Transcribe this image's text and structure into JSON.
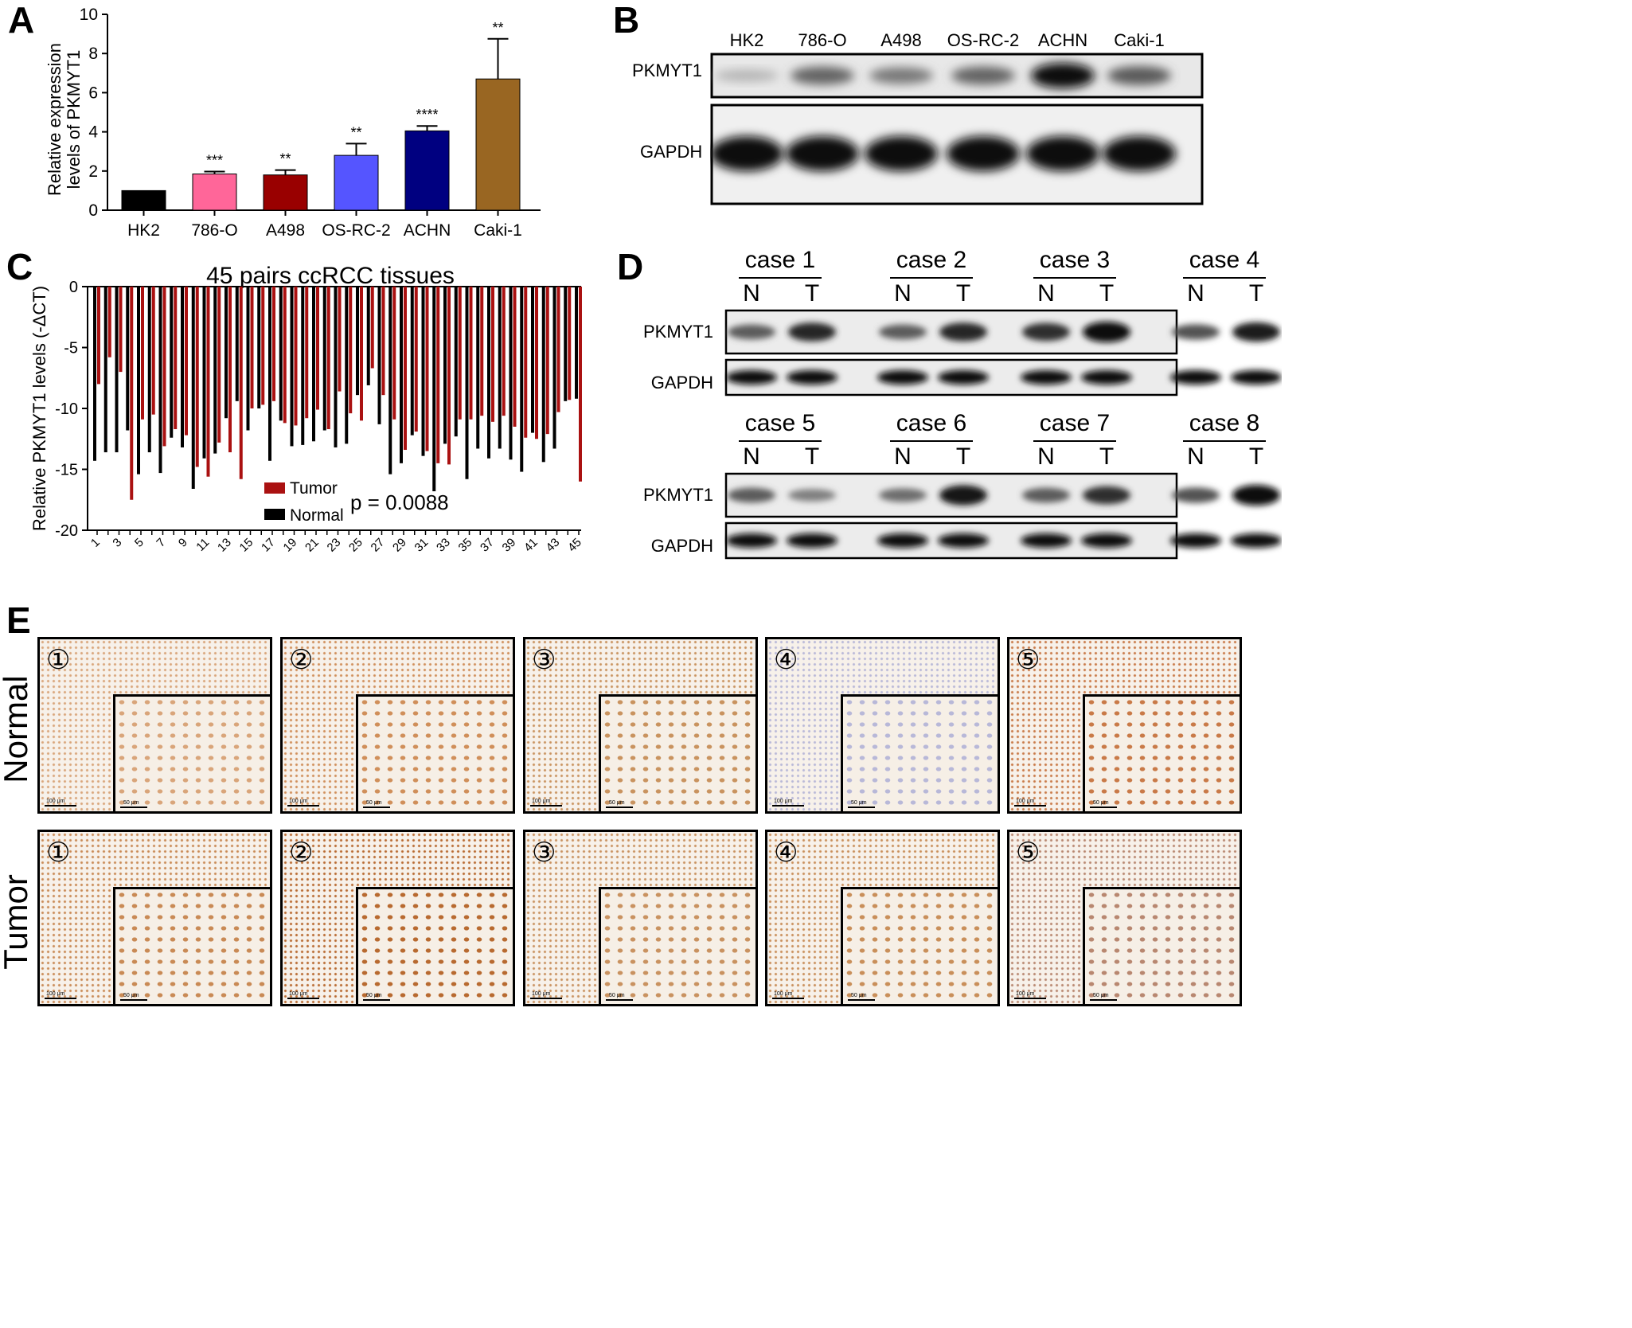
{
  "panels": {
    "A": "A",
    "B": "B",
    "C": "C",
    "D": "D",
    "E": "E"
  },
  "panel_a": {
    "ylabel_line1": "Relative expression",
    "ylabel_line2": "levels of PKMYT1"
  },
  "panel_b": {
    "lanes": [
      "HK2",
      "786-O",
      "A498",
      "OS-RC-2",
      "ACHN",
      "Caki-1"
    ],
    "rows": [
      "PKMYT1",
      "GAPDH"
    ],
    "pkmyt1_intensity": [
      0.15,
      0.55,
      0.45,
      0.55,
      1.0,
      0.6
    ]
  },
  "panel_c": {
    "legend_tumor": "Tumor",
    "legend_normal": "Normal",
    "pvalue": "p = 0.0088"
  },
  "panel_d": {
    "cases": [
      "case 1",
      "case 2",
      "case 3",
      "case 4",
      "case 5",
      "case 6",
      "case 7",
      "case 8"
    ],
    "n_label": "N",
    "t_label": "T",
    "rows": [
      "PKMYT1",
      "GAPDH"
    ]
  },
  "panel_e": {
    "row_labels": [
      "Normal",
      "Tumor"
    ],
    "sample_numbers": [
      "①",
      "②",
      "③",
      "④",
      "⑤"
    ],
    "scale_large": "100 μm",
    "scale_small": "50 μm",
    "tissue_colors": {
      "Normal": [
        "#d9a57a",
        "#d08f5a",
        "#c9935f",
        "#b8b8d8",
        "#c97a48"
      ],
      "Tumor": [
        "#c98a55",
        "#b86a30",
        "#c99260",
        "#c98f5a",
        "#b88770"
      ]
    }
  },
  "chart_data": [
    {
      "type": "bar",
      "categories": [
        "HK2",
        "786-O",
        "A498",
        "OS-RC-2",
        "ACHN",
        "Caki-1"
      ],
      "values": [
        1.0,
        1.85,
        1.8,
        2.8,
        4.05,
        6.7
      ],
      "errors": [
        0,
        0.12,
        0.25,
        0.6,
        0.25,
        2.05
      ],
      "significance": [
        "",
        "***",
        "**",
        "**",
        "****",
        "**"
      ],
      "colors": [
        "#000000",
        "#ff6699",
        "#990000",
        "#5555ff",
        "#000080",
        "#996622"
      ],
      "xlabel": "",
      "ylabel": "Relative expression levels of PKMYT1",
      "ylim": [
        0,
        10
      ],
      "yticks": [
        0,
        2,
        4,
        6,
        8,
        10
      ],
      "grid": false
    },
    {
      "type": "bar",
      "title": "45 pairs ccRCC tissues",
      "ylabel": "Relative PKMYT1 levels (-ΔCT)",
      "ylim": [
        -20,
        0
      ],
      "yticks": [
        0,
        -5,
        -10,
        -15,
        -20
      ],
      "xticks": [
        1,
        3,
        5,
        7,
        9,
        11,
        13,
        15,
        17,
        19,
        21,
        23,
        25,
        27,
        29,
        31,
        33,
        35,
        37,
        39,
        41,
        43,
        45
      ],
      "legend": "bottom-center",
      "x": [
        1,
        2,
        3,
        4,
        5,
        6,
        7,
        8,
        9,
        10,
        11,
        12,
        13,
        14,
        15,
        16,
        17,
        18,
        19,
        20,
        21,
        22,
        23,
        24,
        25,
        26,
        27,
        28,
        29,
        30,
        31,
        32,
        33,
        34,
        35,
        36,
        37,
        38,
        39,
        40,
        41,
        42,
        43,
        44,
        45
      ],
      "series": [
        {
          "name": "Tumor",
          "color": "#aa1111",
          "values": [
            -8.0,
            -5.8,
            -7.0,
            -17.5,
            -10.9,
            -10.5,
            -13.1,
            -11.7,
            -12.2,
            -14.8,
            -15.6,
            -12.8,
            -13.6,
            -15.8,
            -10.0,
            -9.7,
            -9.4,
            -11.2,
            -11.4,
            -10.8,
            -10.1,
            -11.7,
            -8.6,
            -10.4,
            -11.0,
            -6.7,
            -8.9,
            -10.9,
            -13.4,
            -11.9,
            -13.5,
            -14.5,
            -14.6,
            -10.9,
            -10.9,
            -10.6,
            -11.1,
            -10.6,
            -11.5,
            -12.4,
            -12.5,
            -12.1,
            -10.3,
            -9.3,
            -16.0
          ]
        },
        {
          "name": "Normal",
          "color": "#000000",
          "values": [
            -14.3,
            -13.6,
            -13.6,
            -11.8,
            -15.4,
            -13.6,
            -15.3,
            -12.4,
            -13.2,
            -16.6,
            -14.1,
            -13.7,
            -10.8,
            -9.4,
            -11.8,
            -10.0,
            -14.3,
            -11.0,
            -13.1,
            -13.0,
            -12.7,
            -11.8,
            -13.2,
            -12.9,
            -8.9,
            -8.1,
            -11.3,
            -15.4,
            -14.5,
            -12.2,
            -13.9,
            -16.8,
            -12.9,
            -12.3,
            -15.8,
            -13.3,
            -14.1,
            -13.3,
            -14.2,
            -15.2,
            -12.0,
            -14.4,
            -13.3,
            -9.4,
            -9.2
          ]
        }
      ]
    }
  ]
}
